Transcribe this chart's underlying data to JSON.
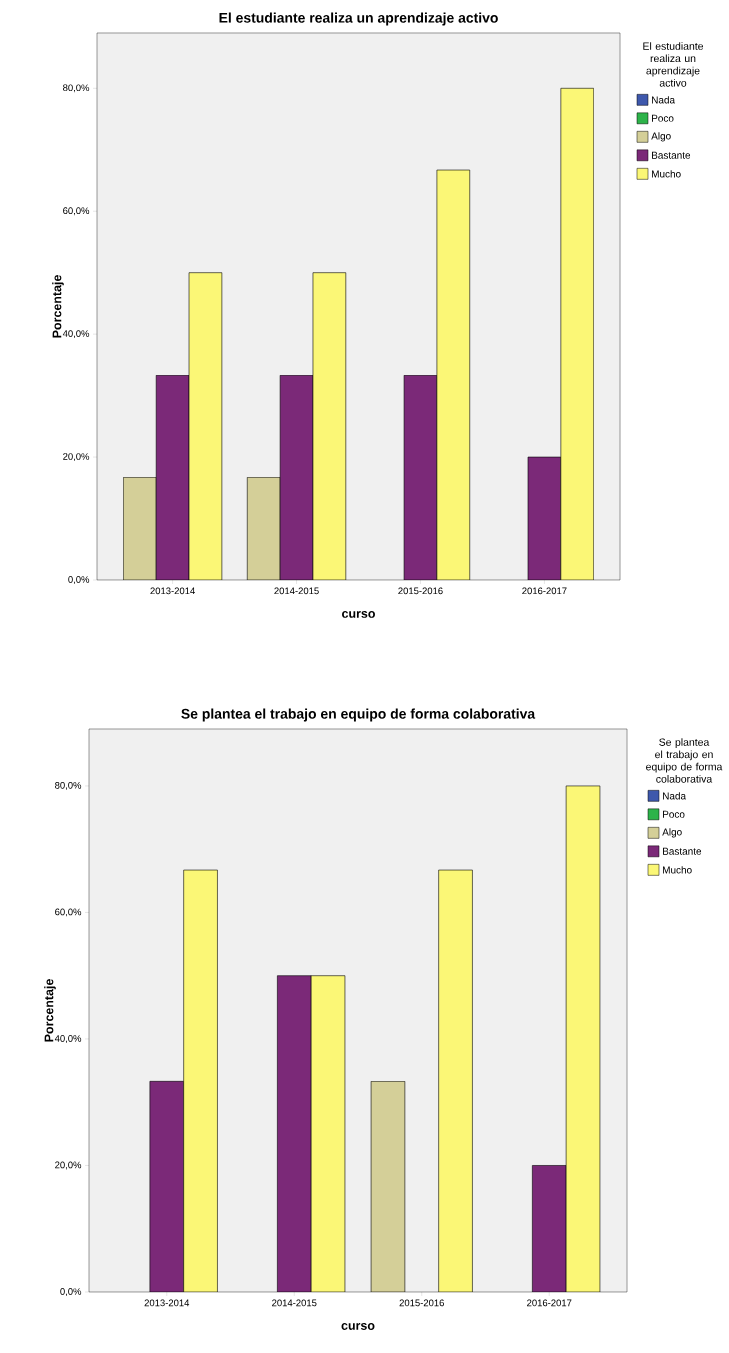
{
  "chart_data": [
    {
      "type": "bar",
      "title": "El estudiante realiza un aprendizaje activo",
      "xlabel": "curso",
      "ylabel": "Porcentaje",
      "legend_title": "El estudiante realiza un aprendizaje activo",
      "legend": "right",
      "grid": false,
      "categories": [
        "2013-2014",
        "2014-2015",
        "2015-2016",
        "2016-2017"
      ],
      "ylim": [
        0,
        89
      ],
      "yticks": [
        {
          "value": 0,
          "label": "0,0%"
        },
        {
          "value": 20,
          "label": "20,0%"
        },
        {
          "value": 40,
          "label": "40,0%"
        },
        {
          "value": 60,
          "label": "60,0%"
        },
        {
          "value": 80,
          "label": "80,0%"
        }
      ],
      "series": [
        {
          "name": "Nada",
          "color": "#3e58ac",
          "values": [
            null,
            null,
            null,
            null
          ]
        },
        {
          "name": "Poco",
          "color": "#2db34a",
          "values": [
            null,
            null,
            null,
            null
          ]
        },
        {
          "name": "Algo",
          "color": "#d4cf98",
          "values": [
            16.7,
            16.7,
            null,
            null
          ]
        },
        {
          "name": "Bastante",
          "color": "#7b2978",
          "values": [
            33.3,
            33.3,
            33.3,
            20
          ]
        },
        {
          "name": "Mucho",
          "color": "#fbf776",
          "values": [
            50,
            50,
            66.7,
            80
          ]
        }
      ]
    },
    {
      "type": "bar",
      "title": "Se plantea el trabajo en equipo de forma colaborativa",
      "xlabel": "curso",
      "ylabel": "Porcentaje",
      "legend_title": "Se plantea el trabajo en equipo de forma colaborativa",
      "legend": "right",
      "grid": false,
      "categories": [
        "2013-2014",
        "2014-2015",
        "2015-2016",
        "2016-2017"
      ],
      "ylim": [
        0,
        89
      ],
      "yticks": [
        {
          "value": 0,
          "label": "0,0%"
        },
        {
          "value": 20,
          "label": "20,0%"
        },
        {
          "value": 40,
          "label": "40,0%"
        },
        {
          "value": 60,
          "label": "60,0%"
        },
        {
          "value": 80,
          "label": "80,0%"
        }
      ],
      "series": [
        {
          "name": "Nada",
          "color": "#3e58ac",
          "values": [
            null,
            null,
            null,
            null
          ]
        },
        {
          "name": "Poco",
          "color": "#2db34a",
          "values": [
            null,
            null,
            null,
            null
          ]
        },
        {
          "name": "Algo",
          "color": "#d4cf98",
          "values": [
            null,
            null,
            33.3,
            null
          ]
        },
        {
          "name": "Bastante",
          "color": "#7b2978",
          "values": [
            33.3,
            50,
            null,
            20
          ]
        },
        {
          "name": "Mucho",
          "color": "#fbf776",
          "values": [
            66.7,
            50,
            66.7,
            80
          ]
        }
      ]
    }
  ]
}
